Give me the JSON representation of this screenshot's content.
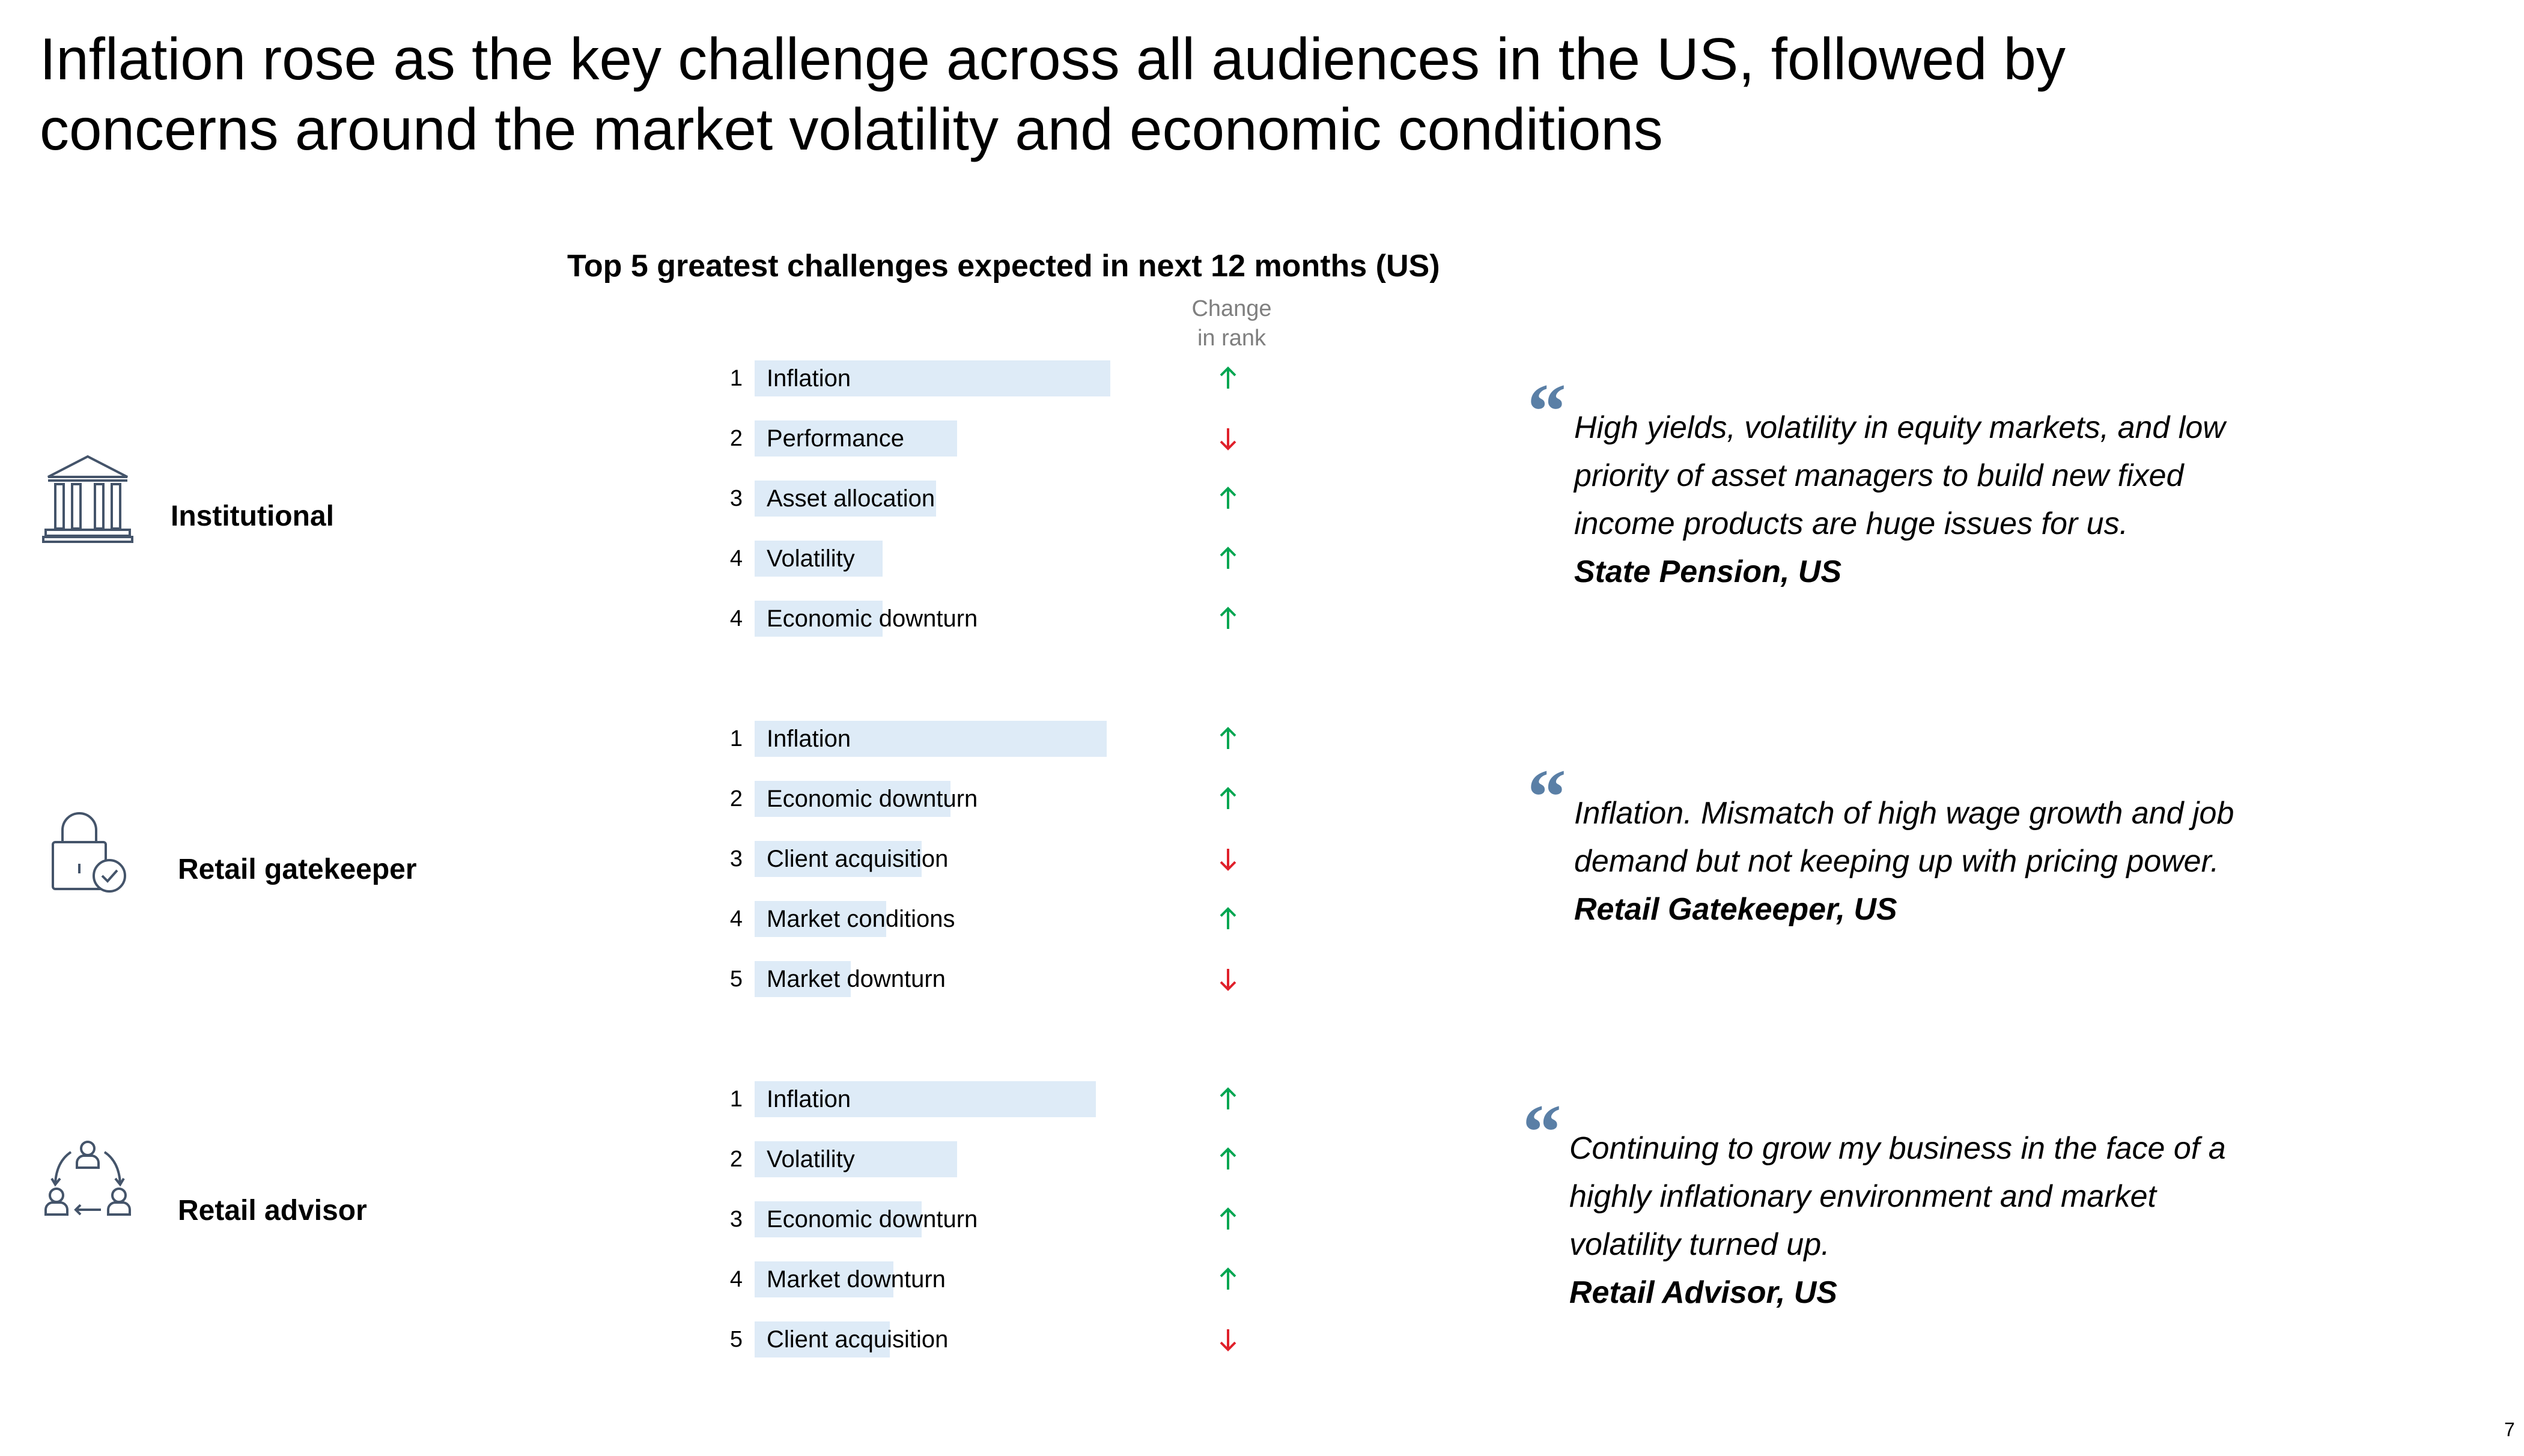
{
  "title_lines": [
    "Inflation rose as the key challenge across all audiences in the US, followed by",
    "concerns around the market volatility and economic conditions"
  ],
  "page_number": "7",
  "colors": {
    "bar": "#deebf7",
    "up_arrow": "#00a651",
    "down_arrow": "#e0202a",
    "quote_mark": "#5a7fa6"
  },
  "chart_data": {
    "type": "bar",
    "title": "Top 5 greatest challenges expected in next 12 months (US)",
    "change_header_lines": [
      "Change",
      "in rank"
    ],
    "groups": [
      {
        "audience": "Institutional",
        "icon": "institution-building-icon",
        "rows": [
          {
            "rank": "1",
            "label": "Inflation",
            "value": 1.0,
            "change": "up"
          },
          {
            "rank": "2",
            "label": "Performance",
            "value": 0.57,
            "change": "down"
          },
          {
            "rank": "3",
            "label": "Asset allocation",
            "value": 0.51,
            "change": "up"
          },
          {
            "rank": "4",
            "label": "Volatility",
            "value": 0.36,
            "change": "up"
          },
          {
            "rank": "4",
            "label": "Economic downturn",
            "value": 0.36,
            "change": "up"
          }
        ]
      },
      {
        "audience": "Retail gatekeeper",
        "icon": "lock-check-icon",
        "rows": [
          {
            "rank": "1",
            "label": "Inflation",
            "value": 0.99,
            "change": "up"
          },
          {
            "rank": "2",
            "label": "Economic downturn",
            "value": 0.55,
            "change": "up"
          },
          {
            "rank": "3",
            "label": "Client acquisition",
            "value": 0.47,
            "change": "down"
          },
          {
            "rank": "4",
            "label": "Market conditions",
            "value": 0.37,
            "change": "up"
          },
          {
            "rank": "5",
            "label": "Market downturn",
            "value": 0.27,
            "change": "down"
          }
        ]
      },
      {
        "audience": "Retail advisor",
        "icon": "advisor-cycle-icon",
        "rows": [
          {
            "rank": "1",
            "label": "Inflation",
            "value": 0.96,
            "change": "up"
          },
          {
            "rank": "2",
            "label": "Volatility",
            "value": 0.57,
            "change": "up"
          },
          {
            "rank": "3",
            "label": "Economic downturn",
            "value": 0.47,
            "change": "up"
          },
          {
            "rank": "4",
            "label": "Market downturn",
            "value": 0.39,
            "change": "up"
          },
          {
            "rank": "5",
            "label": "Client acquisition",
            "value": 0.38,
            "change": "down"
          }
        ]
      }
    ]
  },
  "quotes": [
    {
      "lines": [
        "High yields, volatility in equity markets, and low",
        "priority of asset managers to build new fixed",
        "income products are huge issues for us."
      ],
      "source": "State Pension, US"
    },
    {
      "lines": [
        "Inflation. Mismatch of high wage growth and job",
        "demand but not keeping up with pricing power."
      ],
      "source": "Retail Gatekeeper, US"
    },
    {
      "lines": [
        "Continuing to grow my business in the face of a",
        "highly inflationary environment and market",
        "volatility turned up."
      ],
      "source": "Retail Advisor, US"
    }
  ]
}
